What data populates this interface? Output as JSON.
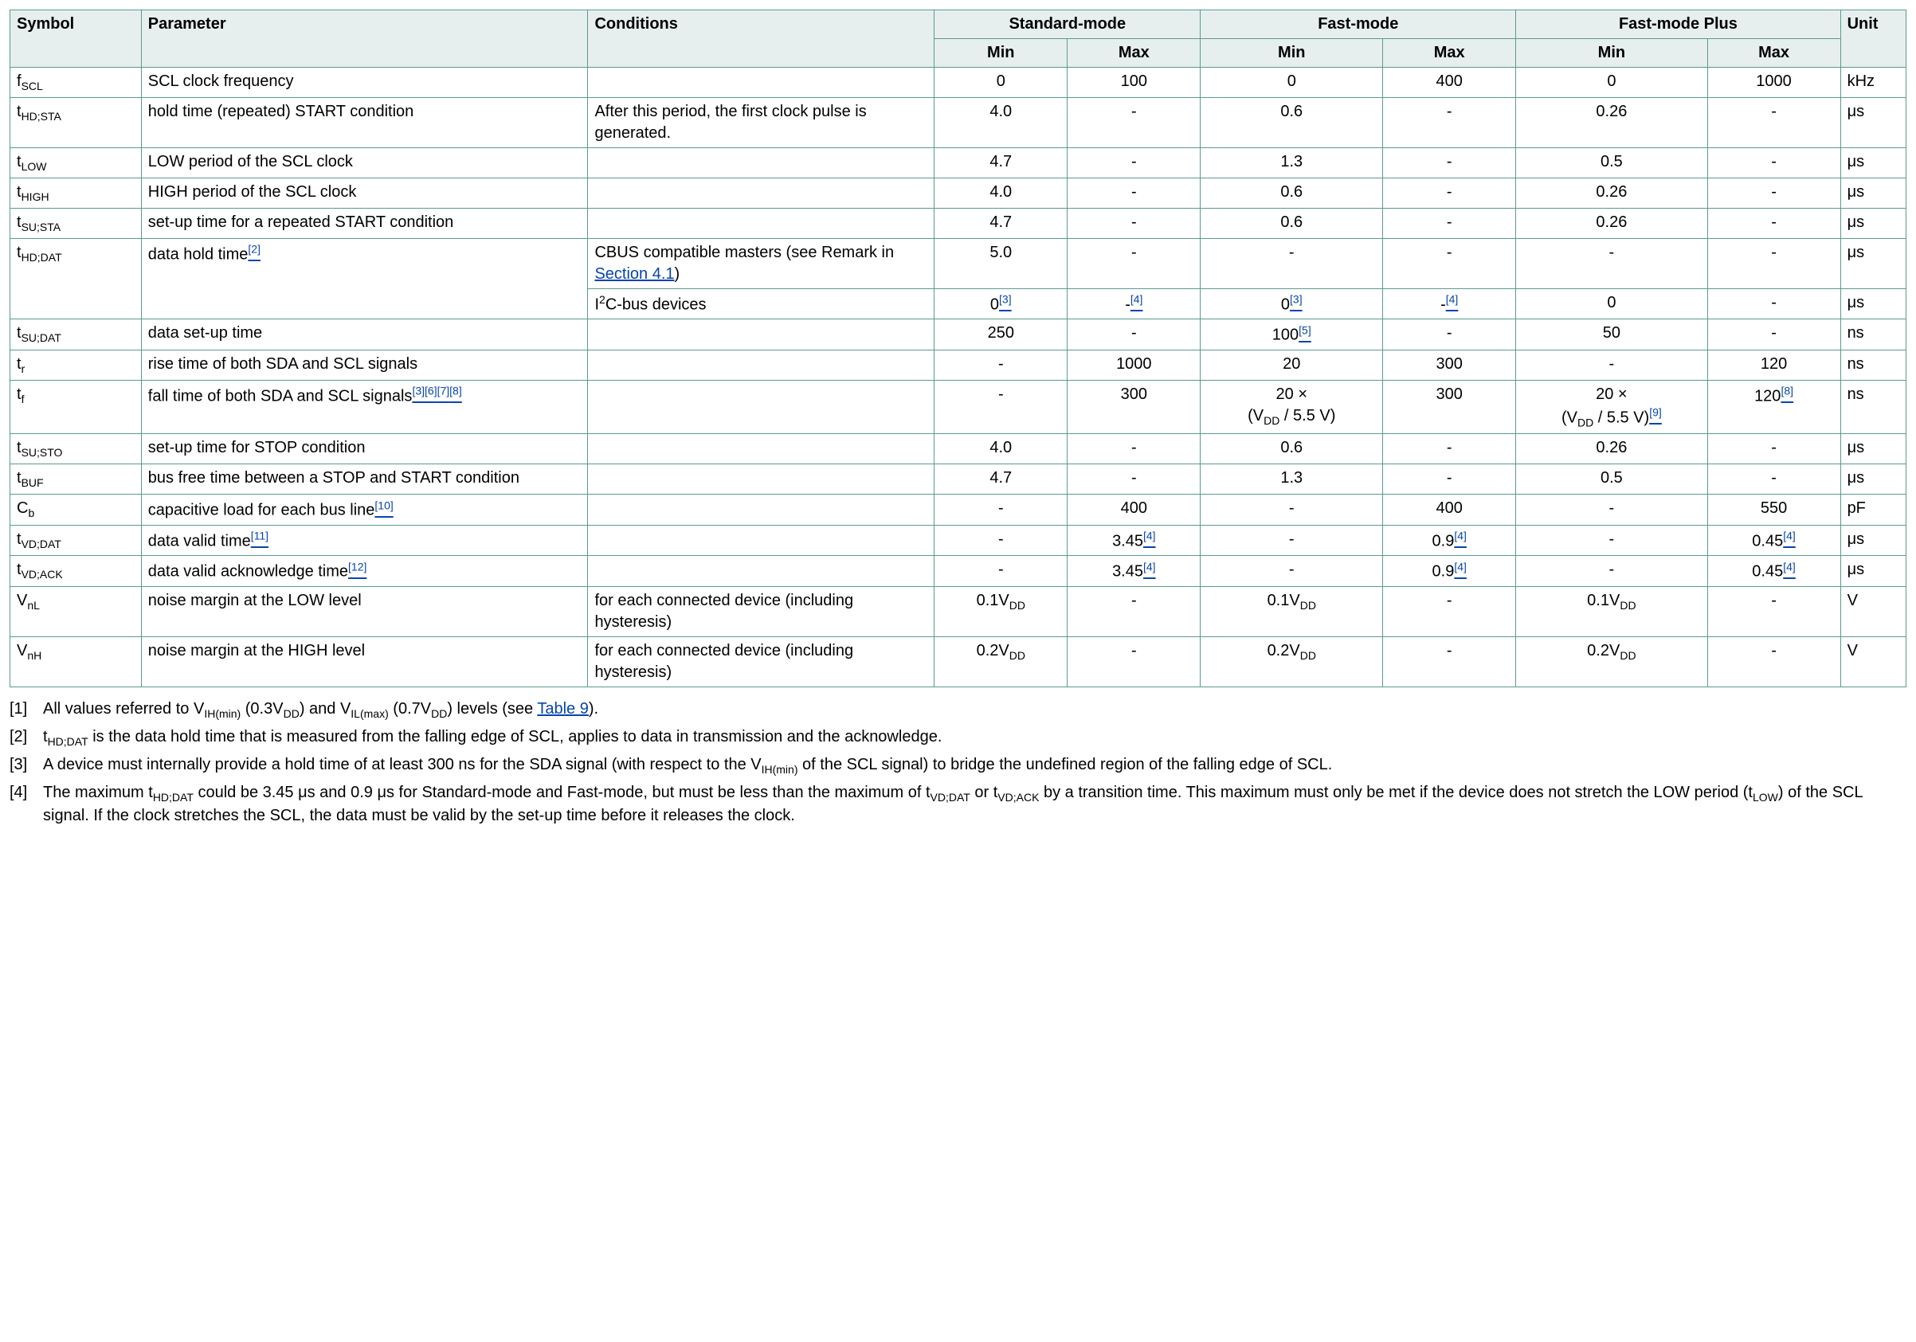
{
  "table": {
    "header_bg": "#e6efed",
    "border_color": "#5a9b8d",
    "link_color": "#0645ad",
    "columns": {
      "symbol": "Symbol",
      "parameter": "Parameter",
      "conditions": "Conditions",
      "modes": [
        {
          "name": "Standard-mode",
          "min": "Min",
          "max": "Max"
        },
        {
          "name": "Fast-mode",
          "min": "Min",
          "max": "Max"
        },
        {
          "name": "Fast-mode Plus",
          "min": "Min",
          "max": "Max"
        }
      ],
      "unit": "Unit"
    },
    "rows": [
      {
        "symbol_html": "f<sub>SCL</sub>",
        "parameter_html": "SCL clock frequency",
        "conditions_html": "",
        "values": [
          "0",
          "100",
          "0",
          "400",
          "0",
          "1000"
        ],
        "unit": "kHz"
      },
      {
        "symbol_html": "t<sub>HD;STA</sub>",
        "parameter_html": "hold time (repeated) START condition",
        "conditions_html": "After this period, the first clock pulse is generated.",
        "values": [
          "4.0",
          "-",
          "0.6",
          "-",
          "0.26",
          "-"
        ],
        "unit": "μs"
      },
      {
        "symbol_html": "t<sub>LOW</sub>",
        "parameter_html": "LOW period of the SCL clock",
        "conditions_html": "",
        "values": [
          "4.7",
          "-",
          "1.3",
          "-",
          "0.5",
          "-"
        ],
        "unit": "μs"
      },
      {
        "symbol_html": "t<sub>HIGH</sub>",
        "parameter_html": "HIGH period of the SCL clock",
        "conditions_html": "",
        "values": [
          "4.0",
          "-",
          "0.6",
          "-",
          "0.26",
          "-"
        ],
        "unit": "μs"
      },
      {
        "symbol_html": "t<sub>SU;STA</sub>",
        "parameter_html": "set-up time for a repeated START condition",
        "conditions_html": "",
        "values": [
          "4.7",
          "-",
          "0.6",
          "-",
          "0.26",
          "-"
        ],
        "unit": "μs"
      },
      {
        "symbol_html": "t<sub>HD;DAT</sub>",
        "symbol_rowspan": 2,
        "parameter_html": "data hold time<a class='footlink' href='#'><sup>[2]</sup></a>",
        "parameter_rowspan": 2,
        "conditions_html": "CBUS compatible masters (see Remark in <a class='footlink' href='#'>Section 4.1</a>)",
        "values": [
          "5.0",
          "-",
          "-",
          "-",
          "-",
          "-"
        ],
        "unit": "μs"
      },
      {
        "continuation": true,
        "conditions_html": "I<sup>2</sup>C-bus devices",
        "values_html": [
          "0<a class='footlink' href='#'><sup>[3]</sup></a>",
          "-<a class='footlink' href='#'><sup>[4]</sup></a>",
          "0<a class='footlink' href='#'><sup>[3]</sup></a>",
          "-<a class='footlink' href='#'><sup>[4]</sup></a>",
          "0",
          "-"
        ],
        "unit": "μs"
      },
      {
        "symbol_html": "t<sub>SU;DAT</sub>",
        "parameter_html": "data set-up time",
        "conditions_html": "",
        "values_html": [
          "250",
          "-",
          "100<a class='footlink' href='#'><sup>[5]</sup></a>",
          "-",
          "50",
          "-"
        ],
        "unit": "ns"
      },
      {
        "symbol_html": "t<sub>r</sub>",
        "parameter_html": "rise time of both SDA and SCL signals",
        "conditions_html": "",
        "values": [
          "-",
          "1000",
          "20",
          "300",
          "-",
          "120"
        ],
        "unit": "ns"
      },
      {
        "symbol_html": "t<sub>f</sub>",
        "parameter_html": "fall time of both SDA and SCL signals<a class='footlink' href='#'><sup>[3]</sup></a><a class='footlink' href='#'><sup>[6]</sup></a><a class='footlink' href='#'><sup>[7]</sup></a><a class='footlink' href='#'><sup>[8]</sup></a>",
        "conditions_html": "",
        "values_html": [
          "-",
          "300",
          "20 ×<br>(V<sub>DD</sub> / 5.5 V)",
          "300",
          "20 ×<br>(V<sub>DD</sub> / 5.5 V)<a class='footlink' href='#'><sup>[9]</sup></a>",
          "120<a class='footlink' href='#'><sup>[8]</sup></a>"
        ],
        "unit": "ns"
      },
      {
        "symbol_html": "t<sub>SU;STO</sub>",
        "parameter_html": "set-up time for STOP condition",
        "conditions_html": "",
        "values": [
          "4.0",
          "-",
          "0.6",
          "-",
          "0.26",
          "-"
        ],
        "unit": "μs"
      },
      {
        "symbol_html": "t<sub>BUF</sub>",
        "parameter_html": "bus free time between a STOP and START condition",
        "conditions_html": "",
        "values": [
          "4.7",
          "-",
          "1.3",
          "-",
          "0.5",
          "-"
        ],
        "unit": "μs"
      },
      {
        "symbol_html": "C<sub>b</sub>",
        "parameter_html": "capacitive load for each bus line<a class='footlink' href='#'><sup>[10]</sup></a>",
        "conditions_html": "",
        "values": [
          "-",
          "400",
          "-",
          "400",
          "-",
          "550"
        ],
        "unit": "pF"
      },
      {
        "symbol_html": "t<sub>VD;DAT</sub>",
        "parameter_html": "data valid time<a class='footlink' href='#'><sup>[11]</sup></a>",
        "conditions_html": "",
        "values_html": [
          "-",
          "3.45<a class='footlink' href='#'><sup>[4]</sup></a>",
          "-",
          "0.9<a class='footlink' href='#'><sup>[4]</sup></a>",
          "-",
          "0.45<a class='footlink' href='#'><sup>[4]</sup></a>"
        ],
        "unit": "μs"
      },
      {
        "symbol_html": "t<sub>VD;ACK</sub>",
        "parameter_html": "data valid acknowledge time<a class='footlink' href='#'><sup>[12]</sup></a>",
        "conditions_html": "",
        "values_html": [
          "-",
          "3.45<a class='footlink' href='#'><sup>[4]</sup></a>",
          "-",
          "0.9<a class='footlink' href='#'><sup>[4]</sup></a>",
          "-",
          "0.45<a class='footlink' href='#'><sup>[4]</sup></a>"
        ],
        "unit": "μs"
      },
      {
        "symbol_html": "V<sub>nL</sub>",
        "parameter_html": "noise margin at the LOW level",
        "conditions_html": "for each connected device (including hysteresis)",
        "values_html": [
          "0.1V<sub>DD</sub>",
          "-",
          "0.1V<sub>DD</sub>",
          "-",
          "0.1V<sub>DD</sub>",
          "-"
        ],
        "unit": "V"
      },
      {
        "symbol_html": "V<sub>nH</sub>",
        "parameter_html": "noise margin at the HIGH level",
        "conditions_html": "for each connected device (including hysteresis)",
        "values_html": [
          "0.2V<sub>DD</sub>",
          "-",
          "0.2V<sub>DD</sub>",
          "-",
          "0.2V<sub>DD</sub>",
          "-"
        ],
        "unit": "V"
      }
    ]
  },
  "footnotes": [
    {
      "n": "[1]",
      "html": "All values referred to V<sub>IH(min)</sub> (0.3V<sub>DD</sub>) and V<sub>IL(max)</sub> (0.7V<sub>DD</sub>) levels (see <a class='footlink' href='#'>Table 9</a>)."
    },
    {
      "n": "[2]",
      "html": "t<sub>HD;DAT</sub> is the data hold time that is measured from the falling edge of SCL, applies to data in transmission and the acknowledge."
    },
    {
      "n": "[3]",
      "html": "A device must internally provide a hold time of at least 300 ns for the SDA signal (with respect to the V<sub>IH(min)</sub> of the SCL signal) to bridge the undefined region of the falling edge of SCL."
    },
    {
      "n": "[4]",
      "html": "The maximum t<sub>HD;DAT</sub> could be 3.45 μs and 0.9 μs for Standard-mode and Fast-mode, but must be less than the maximum of t<sub>VD;DAT</sub> or t<sub>VD;ACK</sub> by a transition time. This maximum must only be met if the device does not stretch the LOW period (t<sub>LOW</sub>) of the SCL signal. If the clock stretches the SCL, the data must be valid by the set-up time before it releases the clock."
    }
  ]
}
